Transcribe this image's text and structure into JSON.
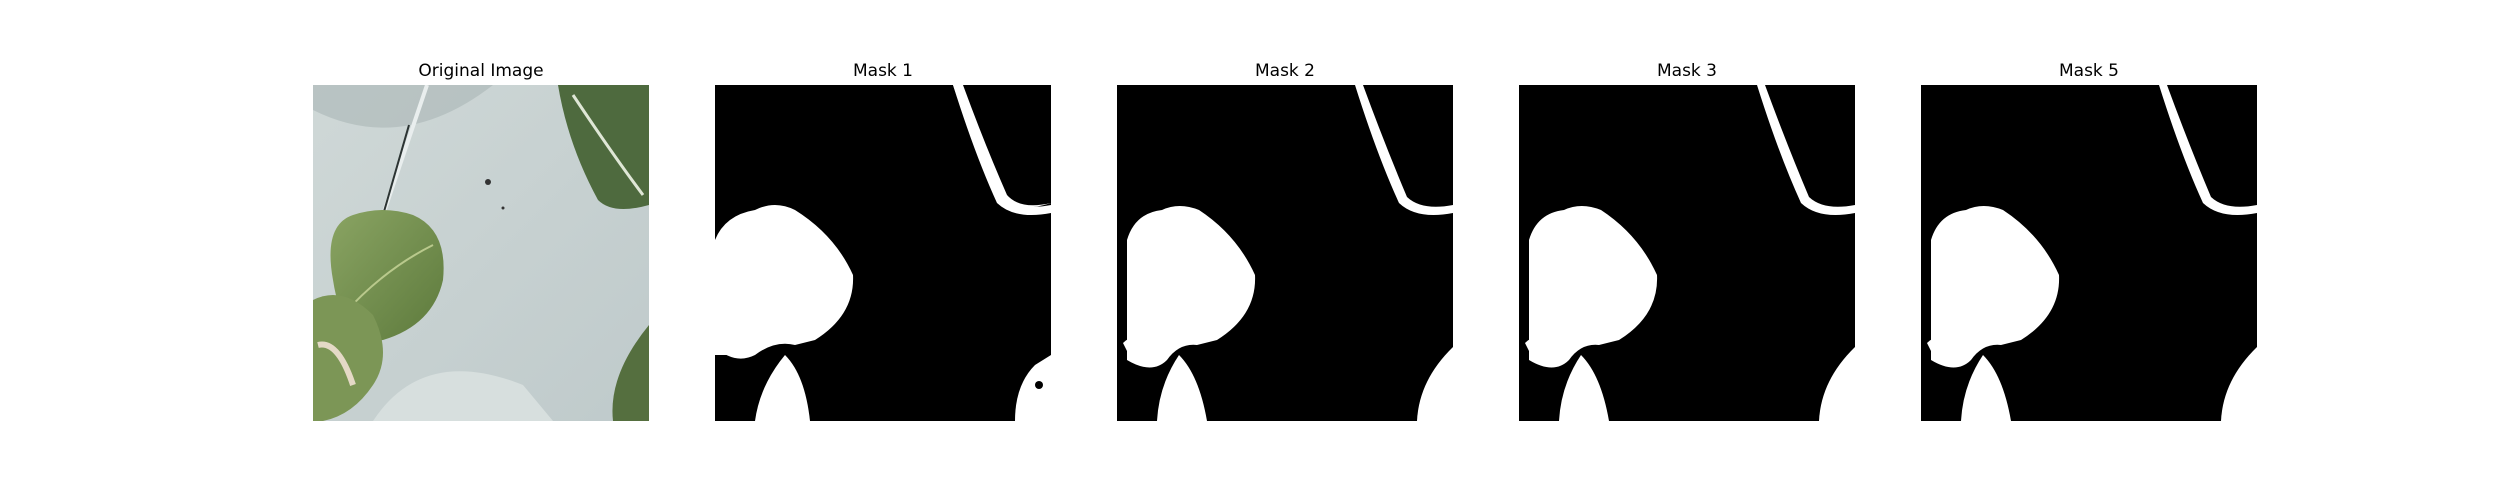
{
  "figure": {
    "panels": [
      {
        "title": "Original Image",
        "kind": "photo",
        "description_icon": "leaf-photo"
      },
      {
        "title": "Mask 1",
        "kind": "mask"
      },
      {
        "title": "Mask 2",
        "kind": "mask"
      },
      {
        "title": "Mask 3",
        "kind": "mask"
      },
      {
        "title": "Mask 5",
        "kind": "mask"
      }
    ]
  },
  "colors": {
    "mask_fg": "#ffffff",
    "mask_bg": "#000000",
    "photo_background": "#c9d3d3",
    "leaf_green": "#6f8a4a"
  }
}
